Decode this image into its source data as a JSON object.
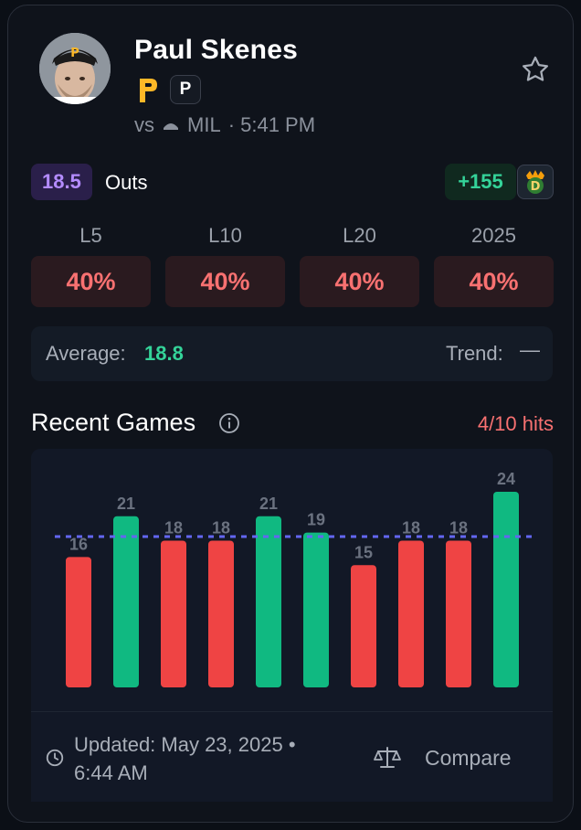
{
  "player": {
    "name": "Paul Skenes",
    "position": "P",
    "matchup_vs": "vs",
    "opponent": "MIL",
    "time": "· 5:41 PM",
    "team_logo_letter": "P"
  },
  "prop": {
    "line": "18.5",
    "stat": "Outs",
    "odds": "+155",
    "book_icon": "draftkings-icon"
  },
  "splits": [
    {
      "label": "L5",
      "value": "40%"
    },
    {
      "label": "L10",
      "value": "40%"
    },
    {
      "label": "L20",
      "value": "40%"
    },
    {
      "label": "2025",
      "value": "40%"
    }
  ],
  "summary": {
    "average_label": "Average:",
    "average_value": "18.8",
    "trend_label": "Trend:",
    "trend_value": "—"
  },
  "recent": {
    "title": "Recent Games",
    "hits": "4/10 hits"
  },
  "chart_data": {
    "type": "bar",
    "values": [
      16,
      21,
      18,
      18,
      21,
      19,
      15,
      18,
      18,
      24
    ],
    "threshold": 18.5,
    "hit_color": "#10b981",
    "miss_color": "#ef4444",
    "line_color": "#6366f1",
    "ylim": [
      0,
      24
    ]
  },
  "footer": {
    "updated_line1": "Updated: May 23, 2025 •",
    "updated_line2": "6:44 AM",
    "compare_label": "Compare"
  },
  "colors": {
    "accent_purple": "#b48cff",
    "positive": "#34d399",
    "negative": "#f87171",
    "pirates_gold": "#fdb827"
  }
}
